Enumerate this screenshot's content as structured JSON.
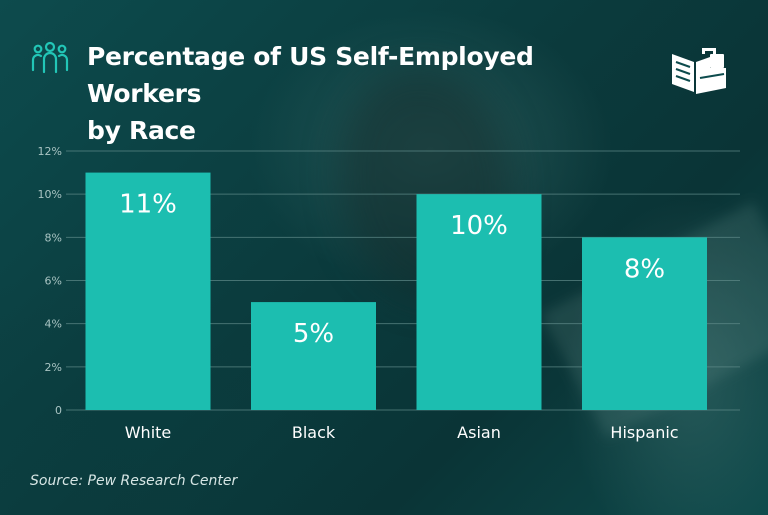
{
  "header": {
    "title_line1": "Percentage of US Self-Employed Workers",
    "title_line2": "by Race",
    "icon": "people-group-icon",
    "logo": "book-briefcase-logo"
  },
  "colors": {
    "background": "#0b3a3c",
    "bar": "#1cbeb0",
    "bar_top": "#24c9ba",
    "text": "#ffffff",
    "icon_accent": "#22c6b7",
    "grid": "#5f8a89"
  },
  "chart_data": {
    "type": "bar",
    "title": "Percentage of US Self-Employed Workers by Race",
    "categories": [
      "White",
      "Black",
      "Asian",
      "Hispanic"
    ],
    "values": [
      11,
      5,
      10,
      8
    ],
    "data_labels": [
      "11%",
      "5%",
      "10%",
      "8%"
    ],
    "ylim": [
      0,
      12
    ],
    "yticks": [
      0,
      2,
      4,
      6,
      8,
      10,
      12
    ],
    "ytick_labels": [
      "0",
      "2%",
      "4%",
      "6%",
      "8%",
      "10%",
      "12%"
    ],
    "grid": true,
    "legend": "none"
  },
  "source": "Source: Pew Research Center"
}
